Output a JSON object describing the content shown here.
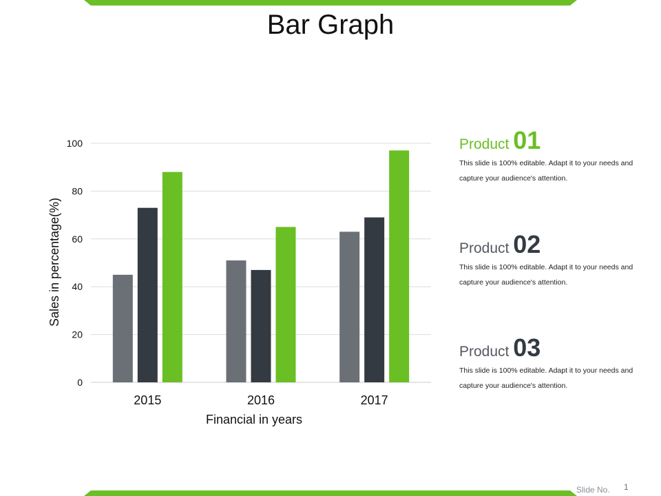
{
  "title": "Bar Graph",
  "colors": {
    "accent": "#6abf24",
    "series_gray": "#6b7076",
    "series_dark": "#343a42",
    "series_green": "#6abf24"
  },
  "panels": [
    {
      "label": "Product",
      "number": "01",
      "text": "This slide is 100% editable. Adapt it to your needs and capture your audience's attention."
    },
    {
      "label": "Product",
      "number": "02",
      "text": "This slide is 100% editable. Adapt it to your needs and capture your audience's attention."
    },
    {
      "label": "Product",
      "number": "03",
      "text": "This slide is 100% editable. Adapt it to your needs and capture your audience's attention."
    }
  ],
  "footer": {
    "slide_label": "Slide No.",
    "slide_number": "1"
  },
  "chart_data": {
    "type": "bar",
    "categories": [
      "2015",
      "2016",
      "2017"
    ],
    "series": [
      {
        "values": [
          45,
          51,
          63
        ],
        "color": "#6b7076"
      },
      {
        "values": [
          73,
          47,
          69
        ],
        "color": "#343a42"
      },
      {
        "values": [
          88,
          65,
          97
        ],
        "color": "#6abf24"
      }
    ],
    "xlabel": "Financial in years",
    "ylabel": "Sales in percentage(%)",
    "ylim": [
      0,
      100
    ],
    "yticks": [
      0,
      20,
      40,
      60,
      80,
      100
    ],
    "grid": true,
    "legend": "none"
  }
}
